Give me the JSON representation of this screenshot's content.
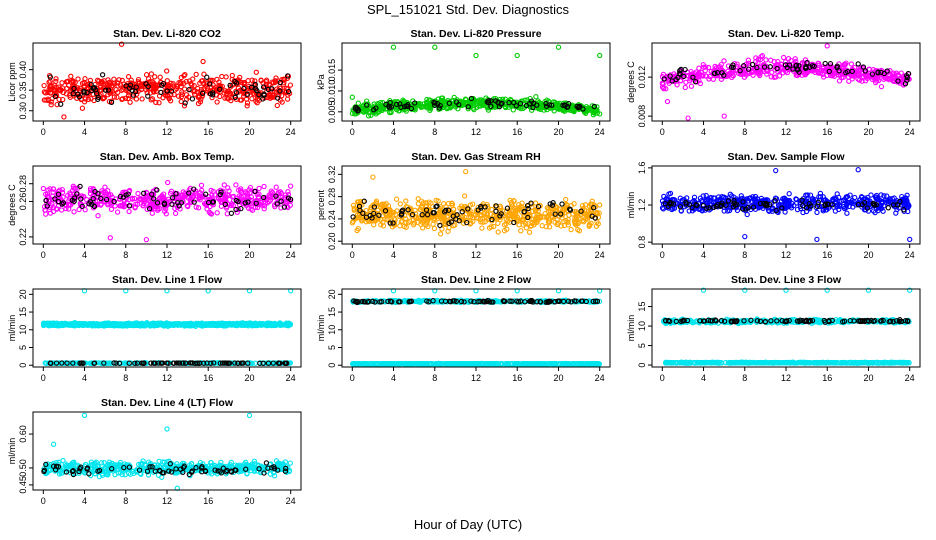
{
  "title": "SPL_151021  Std. Dev. Diagnostics",
  "xlabel": "Hour of Day (UTC)",
  "chart_data": [
    {
      "type": "scatter",
      "title": "Stan. Dev. Li-820 CO2",
      "ylabel": "Licor ppm",
      "xticks": [
        0,
        4,
        8,
        12,
        16,
        20,
        24
      ],
      "yticks": [
        0.3,
        0.35,
        0.4
      ],
      "ytick_labels": [
        "0.30",
        "0.35",
        "0.40"
      ],
      "xlim": [
        -1,
        25
      ],
      "ylim": [
        0.275,
        0.465
      ],
      "color": "#ff0000",
      "series": [
        {
          "color": "#ff0000",
          "center": 0.352,
          "spread": 0.03,
          "trend": "flat",
          "density": 500
        },
        {
          "color": "#000000",
          "center": 0.35,
          "spread": 0.028,
          "trend": "flat",
          "density": 70
        }
      ],
      "outliers": [
        [
          7.6,
          0.462
        ],
        [
          2.0,
          0.285
        ],
        [
          15.5,
          0.42
        ]
      ]
    },
    {
      "type": "scatter",
      "title": "Stan. Dev. Li-820 Pressure",
      "ylabel": "kPa",
      "xticks": [
        0,
        4,
        8,
        12,
        16,
        20,
        24
      ],
      "yticks": [
        0.005,
        0.01,
        0.015
      ],
      "ytick_labels": [
        "0.005",
        "0.010",
        "0.015"
      ],
      "xlim": [
        -1,
        25
      ],
      "ylim": [
        0.0028,
        0.0215
      ],
      "color": "#00cc00",
      "series": [
        {
          "color": "#00cc00",
          "center": 0.0062,
          "spread": 0.0012,
          "trend": "arch",
          "amplitude": 0.0018,
          "density": 550
        },
        {
          "color": "#000000",
          "center": 0.0064,
          "spread": 0.0008,
          "trend": "arch",
          "amplitude": 0.0016,
          "density": 70
        }
      ],
      "outliers": [
        [
          4,
          0.0205
        ],
        [
          8,
          0.0205
        ],
        [
          20,
          0.0205
        ],
        [
          0,
          0.0085
        ],
        [
          16,
          0.0185
        ],
        [
          24,
          0.0185
        ],
        [
          12,
          0.0185
        ],
        [
          24,
          0.0045
        ]
      ]
    },
    {
      "type": "scatter",
      "title": "Stan. Dev. Li-820 Temp.",
      "ylabel": "degrees C",
      "xticks": [
        0,
        4,
        8,
        12,
        16,
        20,
        24
      ],
      "yticks": [
        0.008,
        0.012
      ],
      "ytick_labels": [
        "0.008",
        "0.012"
      ],
      "xlim": [
        -1,
        25
      ],
      "ylim": [
        0.0075,
        0.0155
      ],
      "color": "#ff00ff",
      "series": [
        {
          "color": "#ff00ff",
          "center": 0.0123,
          "spread": 0.0008,
          "trend": "arch",
          "amplitude": 0.0014,
          "density": 500
        },
        {
          "color": "#000000",
          "center": 0.0125,
          "spread": 0.0006,
          "trend": "arch",
          "amplitude": 0.0012,
          "density": 70
        }
      ],
      "outliers": [
        [
          2.5,
          0.0078
        ],
        [
          6,
          0.008
        ],
        [
          16,
          0.0152
        ],
        [
          0.5,
          0.0095
        ]
      ]
    },
    {
      "type": "scatter",
      "title": "Stan. Dev. Amb. Box Temp.",
      "ylabel": "degrees C",
      "xticks": [
        0,
        4,
        8,
        12,
        16,
        20,
        24
      ],
      "yticks": [
        0.22,
        0.26,
        0.28
      ],
      "ytick_labels": [
        "0.22",
        "0.26",
        "0.28"
      ],
      "xlim": [
        -1,
        25
      ],
      "ylim": [
        0.212,
        0.3
      ],
      "color": "#ff00ff",
      "series": [
        {
          "color": "#ff00ff",
          "center": 0.262,
          "spread": 0.013,
          "trend": "flat",
          "density": 500
        },
        {
          "color": "#000000",
          "center": 0.262,
          "spread": 0.012,
          "trend": "flat",
          "density": 70
        }
      ],
      "outliers": [
        [
          10,
          0.217
        ],
        [
          6.5,
          0.219
        ]
      ]
    },
    {
      "type": "scatter",
      "title": "Stan. Dev. Gas Stream RH",
      "ylabel": "percent",
      "xticks": [
        0,
        4,
        8,
        12,
        16,
        20,
        24
      ],
      "yticks": [
        0.2,
        0.24,
        0.28,
        0.32
      ],
      "ytick_labels": [
        "0.20",
        "0.24",
        "0.28",
        "0.32"
      ],
      "xlim": [
        -1,
        25
      ],
      "ylim": [
        0.195,
        0.335
      ],
      "color": "#ffa500",
      "series": [
        {
          "color": "#ffa500",
          "center": 0.248,
          "spread": 0.022,
          "trend": "flat",
          "density": 600
        },
        {
          "color": "#000000",
          "center": 0.25,
          "spread": 0.018,
          "trend": "flat",
          "density": 70
        }
      ],
      "outliers": [
        [
          11,
          0.325
        ],
        [
          2,
          0.315
        ]
      ]
    },
    {
      "type": "scatter",
      "title": "Stan. Dev. Sample Flow",
      "ylabel": "ml/min",
      "xticks": [
        0,
        4,
        8,
        12,
        16,
        20,
        24
      ],
      "yticks": [
        0.8,
        1.2,
        1.6
      ],
      "ytick_labels": [
        "0.8",
        "1.2",
        "1.6"
      ],
      "xlim": [
        -1,
        25
      ],
      "ylim": [
        0.78,
        1.62
      ],
      "color": "#0000ff",
      "series": [
        {
          "color": "#0000ff",
          "center": 1.22,
          "spread": 0.09,
          "trend": "flat",
          "density": 500
        },
        {
          "color": "#000000",
          "center": 1.2,
          "spread": 0.04,
          "trend": "flat",
          "density": 70
        }
      ],
      "outliers": [
        [
          11,
          1.57
        ],
        [
          19,
          1.58
        ],
        [
          15,
          0.83
        ],
        [
          24,
          0.83
        ],
        [
          8,
          0.86
        ]
      ]
    },
    {
      "type": "scatter",
      "title": "Stan. Dev. Line 1 Flow",
      "ylabel": "ml/min",
      "xticks": [
        0,
        4,
        8,
        12,
        16,
        20,
        24
      ],
      "yticks": [
        0,
        5,
        10,
        15,
        20
      ],
      "ytick_labels": [
        "0",
        "5",
        "10",
        "15",
        "20"
      ],
      "xlim": [
        -1,
        25
      ],
      "ylim": [
        -0.5,
        21.5
      ],
      "color": "#00e5ee",
      "series": [
        {
          "color": "#00e5ee",
          "center": 11.5,
          "spread": 0.35,
          "trend": "flat",
          "density": 900
        },
        {
          "color": "#00e5ee",
          "center": 0.6,
          "spread": 0.08,
          "trend": "flat",
          "density": 250
        },
        {
          "color": "#000000",
          "center": 0.6,
          "spread": 0.05,
          "trend": "flat",
          "density": 80
        }
      ],
      "outliers": [
        [
          4,
          21
        ],
        [
          8,
          21
        ],
        [
          12,
          21
        ],
        [
          16,
          21
        ],
        [
          20,
          21
        ],
        [
          24,
          21
        ]
      ]
    },
    {
      "type": "scatter",
      "title": "Stan. Dev. Line 2 Flow",
      "ylabel": "ml/min",
      "xticks": [
        0,
        4,
        8,
        12,
        16,
        20,
        24
      ],
      "yticks": [
        0,
        5,
        10,
        15,
        20
      ],
      "ytick_labels": [
        "0",
        "5",
        "10",
        "15",
        "20"
      ],
      "xlim": [
        -1,
        25
      ],
      "ylim": [
        -0.5,
        21.5
      ],
      "color": "#00e5ee",
      "series": [
        {
          "color": "#00e5ee",
          "center": 18.0,
          "spread": 0.25,
          "trend": "flat",
          "density": 300
        },
        {
          "color": "#000000",
          "center": 18.0,
          "spread": 0.2,
          "trend": "flat",
          "density": 90
        },
        {
          "color": "#00e5ee",
          "center": 0.4,
          "spread": 0.08,
          "trend": "flat",
          "density": 500
        }
      ],
      "outliers": [
        [
          4,
          21
        ],
        [
          8,
          21
        ],
        [
          12,
          21
        ],
        [
          16,
          21
        ],
        [
          20,
          21
        ],
        [
          24,
          21
        ]
      ]
    },
    {
      "type": "scatter",
      "title": "Stan. Dev. Line 3 Flow",
      "ylabel": "ml/min",
      "xticks": [
        0,
        4,
        8,
        12,
        16,
        20,
        24
      ],
      "yticks": [
        0,
        5,
        10,
        15
      ],
      "ytick_labels": [
        "0",
        "5",
        "10",
        "15"
      ],
      "xlim": [
        -1,
        25
      ],
      "ylim": [
        -0.5,
        19.5
      ],
      "color": "#00e5ee",
      "series": [
        {
          "color": "#00e5ee",
          "center": 11.2,
          "spread": 0.4,
          "trend": "flat",
          "density": 350
        },
        {
          "color": "#000000",
          "center": 11.3,
          "spread": 0.2,
          "trend": "flat",
          "density": 90
        },
        {
          "color": "#00e5ee",
          "center": 0.6,
          "spread": 0.1,
          "trend": "flat",
          "density": 500
        }
      ],
      "outliers": [
        [
          4,
          19.2
        ],
        [
          8,
          19.2
        ],
        [
          12,
          19.2
        ],
        [
          16,
          19.2
        ],
        [
          20,
          19.2
        ],
        [
          24,
          19.2
        ]
      ]
    },
    {
      "type": "scatter",
      "title": "Stan. Dev. Line 4 (LT) Flow",
      "ylabel": "ml/min",
      "xticks": [
        0,
        4,
        8,
        12,
        16,
        20,
        24
      ],
      "yticks": [
        0.45,
        0.5,
        0.6
      ],
      "ytick_labels": [
        "0.45",
        "0.50",
        "0.60"
      ],
      "xlim": [
        -1,
        25
      ],
      "ylim": [
        0.435,
        0.665
      ],
      "color": "#00e5ee",
      "series": [
        {
          "color": "#00e5ee",
          "center": 0.5,
          "spread": 0.018,
          "trend": "flat",
          "density": 500
        },
        {
          "color": "#000000",
          "center": 0.495,
          "spread": 0.012,
          "trend": "flat",
          "density": 70
        }
      ],
      "outliers": [
        [
          4,
          0.655
        ],
        [
          20,
          0.655
        ],
        [
          12,
          0.615
        ],
        [
          1,
          0.57
        ],
        [
          13,
          0.44
        ]
      ]
    }
  ]
}
